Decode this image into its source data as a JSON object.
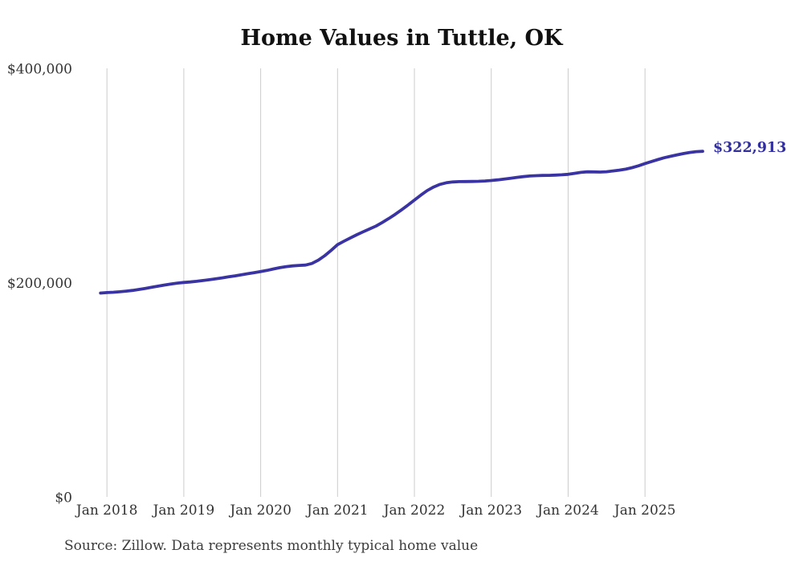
{
  "chart_data": {
    "type": "line",
    "title": "Home Values in Tuttle, OK",
    "source_note": "Source: Zillow. Data represents monthly typical home value",
    "end_label": "$322,913",
    "latest_value": 322913,
    "ylim": [
      0,
      400000
    ],
    "grid": "vertical-only",
    "legend": "none",
    "y_ticks": [
      {
        "value": 0,
        "label": "$0"
      },
      {
        "value": 200000,
        "label": "$200,000"
      },
      {
        "value": 400000,
        "label": "$400,000"
      }
    ],
    "x_ticks": [
      {
        "index": 1,
        "label": "Jan 2018"
      },
      {
        "index": 13,
        "label": "Jan 2019"
      },
      {
        "index": 25,
        "label": "Jan 2020"
      },
      {
        "index": 37,
        "label": "Jan 2021"
      },
      {
        "index": 49,
        "label": "Jan 2022"
      },
      {
        "index": 61,
        "label": "Jan 2023"
      },
      {
        "index": 73,
        "label": "Jan 2024"
      },
      {
        "index": 85,
        "label": "Jan 2025"
      }
    ],
    "points_start": "Dec 2017",
    "points_interval": "monthly",
    "values": [
      190600,
      191100,
      191400,
      191800,
      192400,
      193100,
      194000,
      195000,
      196000,
      197100,
      198100,
      199100,
      199900,
      200500,
      201000,
      201600,
      202300,
      203100,
      203900,
      204800,
      205800,
      206700,
      207700,
      208700,
      209700,
      210700,
      211800,
      213100,
      214300,
      215300,
      216000,
      216400,
      216700,
      218200,
      221300,
      225500,
      230500,
      235800,
      239000,
      242100,
      245000,
      247800,
      250400,
      253100,
      256600,
      260200,
      264100,
      268400,
      272800,
      277400,
      282000,
      286300,
      289600,
      292100,
      293600,
      294300,
      294600,
      294700,
      294800,
      294900,
      295200,
      295700,
      296300,
      297000,
      297800,
      298600,
      299300,
      299900,
      300200,
      300400,
      300500,
      300700,
      301000,
      301500,
      302400,
      303300,
      303800,
      303700,
      303600,
      303900,
      304600,
      305400,
      306300,
      307700,
      309400,
      311500,
      313400,
      315200,
      316900,
      318300,
      319600,
      320800,
      321900,
      322600,
      322913
    ],
    "colors": {
      "line": "#3a33a2",
      "end_label": "#312e9e",
      "grid": "#cccccc",
      "title": "#111111",
      "axis_text": "#333333",
      "source_text": "#3b3b3b"
    }
  }
}
